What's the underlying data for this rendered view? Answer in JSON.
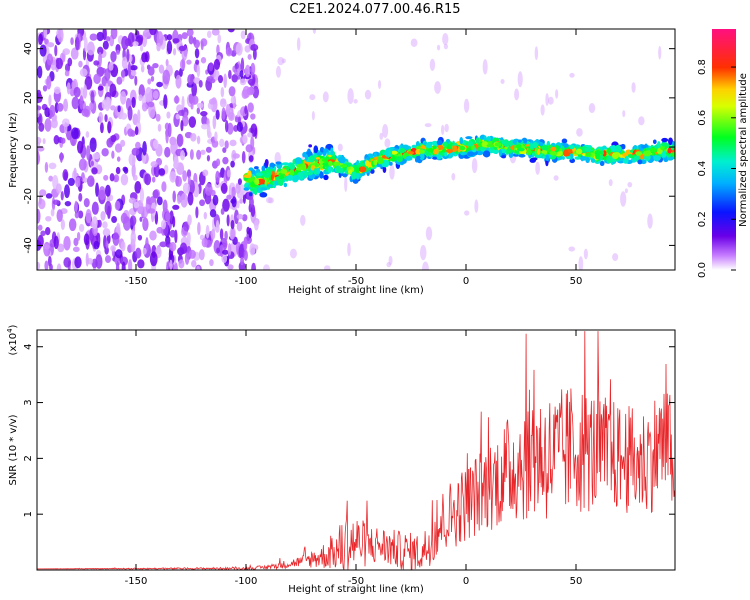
{
  "title": "C2E1.2024.077.00.46.R15",
  "colors": {
    "snr_line": "#e8262a",
    "background": "#ffffff",
    "axis": "#000000"
  },
  "chart_data": [
    {
      "type": "heatmap",
      "xlabel": "Height of straight line (km)",
      "ylabel": "Frequency (Hz)",
      "xlim": [
        -195,
        95
      ],
      "ylim": [
        -50,
        48
      ],
      "xticks": [
        -150,
        -100,
        -50,
        0,
        50
      ],
      "yticks": [
        -40,
        -20,
        0,
        20,
        40
      ],
      "colorbar": {
        "label": "Normalized spectral amplitude",
        "range": [
          0,
          0.95
        ],
        "ticks": [
          0.0,
          0.2,
          0.4,
          0.6,
          0.8
        ],
        "colormap": "rainbow (white-violet-blue-cyan-green-yellow-red-magenta)"
      },
      "ridge": {
        "description_points_x": [
          -100,
          -95,
          -90,
          -80,
          -70,
          -60,
          -50,
          -40,
          -30,
          -20,
          -10,
          0,
          10,
          20,
          30,
          40,
          50,
          60,
          70,
          80,
          90,
          95
        ],
        "frequency_hz": [
          -12,
          -15,
          -13,
          -10,
          -7,
          -6,
          -10,
          -5,
          -3,
          -1,
          -1,
          0,
          1,
          0,
          -1,
          -2,
          -2,
          -3,
          -3,
          -3,
          -1,
          -2
        ]
      },
      "noise_region_x": [
        -195,
        -95
      ]
    },
    {
      "type": "line",
      "xlabel": "Height of straight line (km)",
      "ylabel": "SNR (10 * v/v)",
      "y_multiplier": "(x10",
      "y_multiplier_exp": "4",
      "y_multiplier_close": ")",
      "xlim": [
        -195,
        95
      ],
      "ylim": [
        0,
        4.3
      ],
      "xticks": [
        -150,
        -100,
        -50,
        0,
        50
      ],
      "yticks": [
        1,
        2,
        3,
        4
      ],
      "envelope_x": [
        -195,
        -100,
        -90,
        -75,
        -60,
        -55,
        -50,
        -45,
        -40,
        -30,
        -20,
        -10,
        0,
        10,
        20,
        30,
        40,
        50,
        60,
        70,
        80,
        90,
        95
      ],
      "envelope_mean": [
        0.02,
        0.03,
        0.05,
        0.15,
        0.3,
        0.45,
        0.5,
        0.45,
        0.45,
        0.35,
        0.3,
        0.9,
        1.2,
        1.5,
        1.8,
        2.1,
        2.0,
        2.2,
        2.1,
        2.0,
        1.9,
        2.3,
        2.0
      ],
      "envelope_spread": [
        0.0,
        0.02,
        0.04,
        0.1,
        0.3,
        0.6,
        0.5,
        0.4,
        0.35,
        0.35,
        0.35,
        0.6,
        0.7,
        0.8,
        1.0,
        1.2,
        1.2,
        1.2,
        1.1,
        1.0,
        1.0,
        1.1,
        1.0
      ]
    }
  ]
}
